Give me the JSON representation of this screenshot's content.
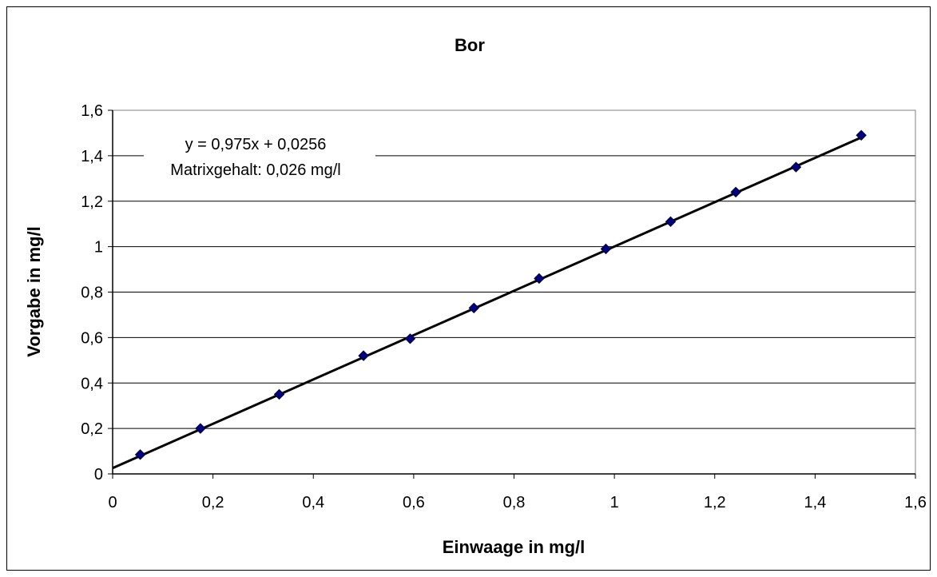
{
  "chart_data": {
    "type": "scatter",
    "title": "Bor",
    "xlabel": "Einwaage in mg/l",
    "ylabel": "Vorgabe in mg/l",
    "xlim": [
      0,
      1.6
    ],
    "ylim": [
      0,
      1.6
    ],
    "x_ticks": [
      "0",
      "0,2",
      "0,4",
      "0,6",
      "0,8",
      "1",
      "1,2",
      "1,4",
      "1,6"
    ],
    "y_ticks": [
      "0",
      "0,2",
      "0,4",
      "0,6",
      "0,8",
      "1",
      "1,2",
      "1,4",
      "1,6"
    ],
    "grid": "horizontal",
    "series": [
      {
        "marker": "diamond",
        "color": "#000080",
        "x": [
          0.055,
          0.175,
          0.332,
          0.5,
          0.593,
          0.72,
          0.85,
          0.983,
          1.112,
          1.242,
          1.362,
          1.492
        ],
        "y": [
          0.085,
          0.2,
          0.35,
          0.52,
          0.595,
          0.73,
          0.86,
          0.99,
          1.11,
          1.24,
          1.35,
          1.49
        ]
      }
    ],
    "trendline": {
      "slope": 0.975,
      "intercept": 0.0256,
      "color": "#000000"
    },
    "annotation": {
      "equation": "y = 0,975x + 0,0256",
      "note": "Matrixgehalt: 0,026 mg/l"
    }
  }
}
